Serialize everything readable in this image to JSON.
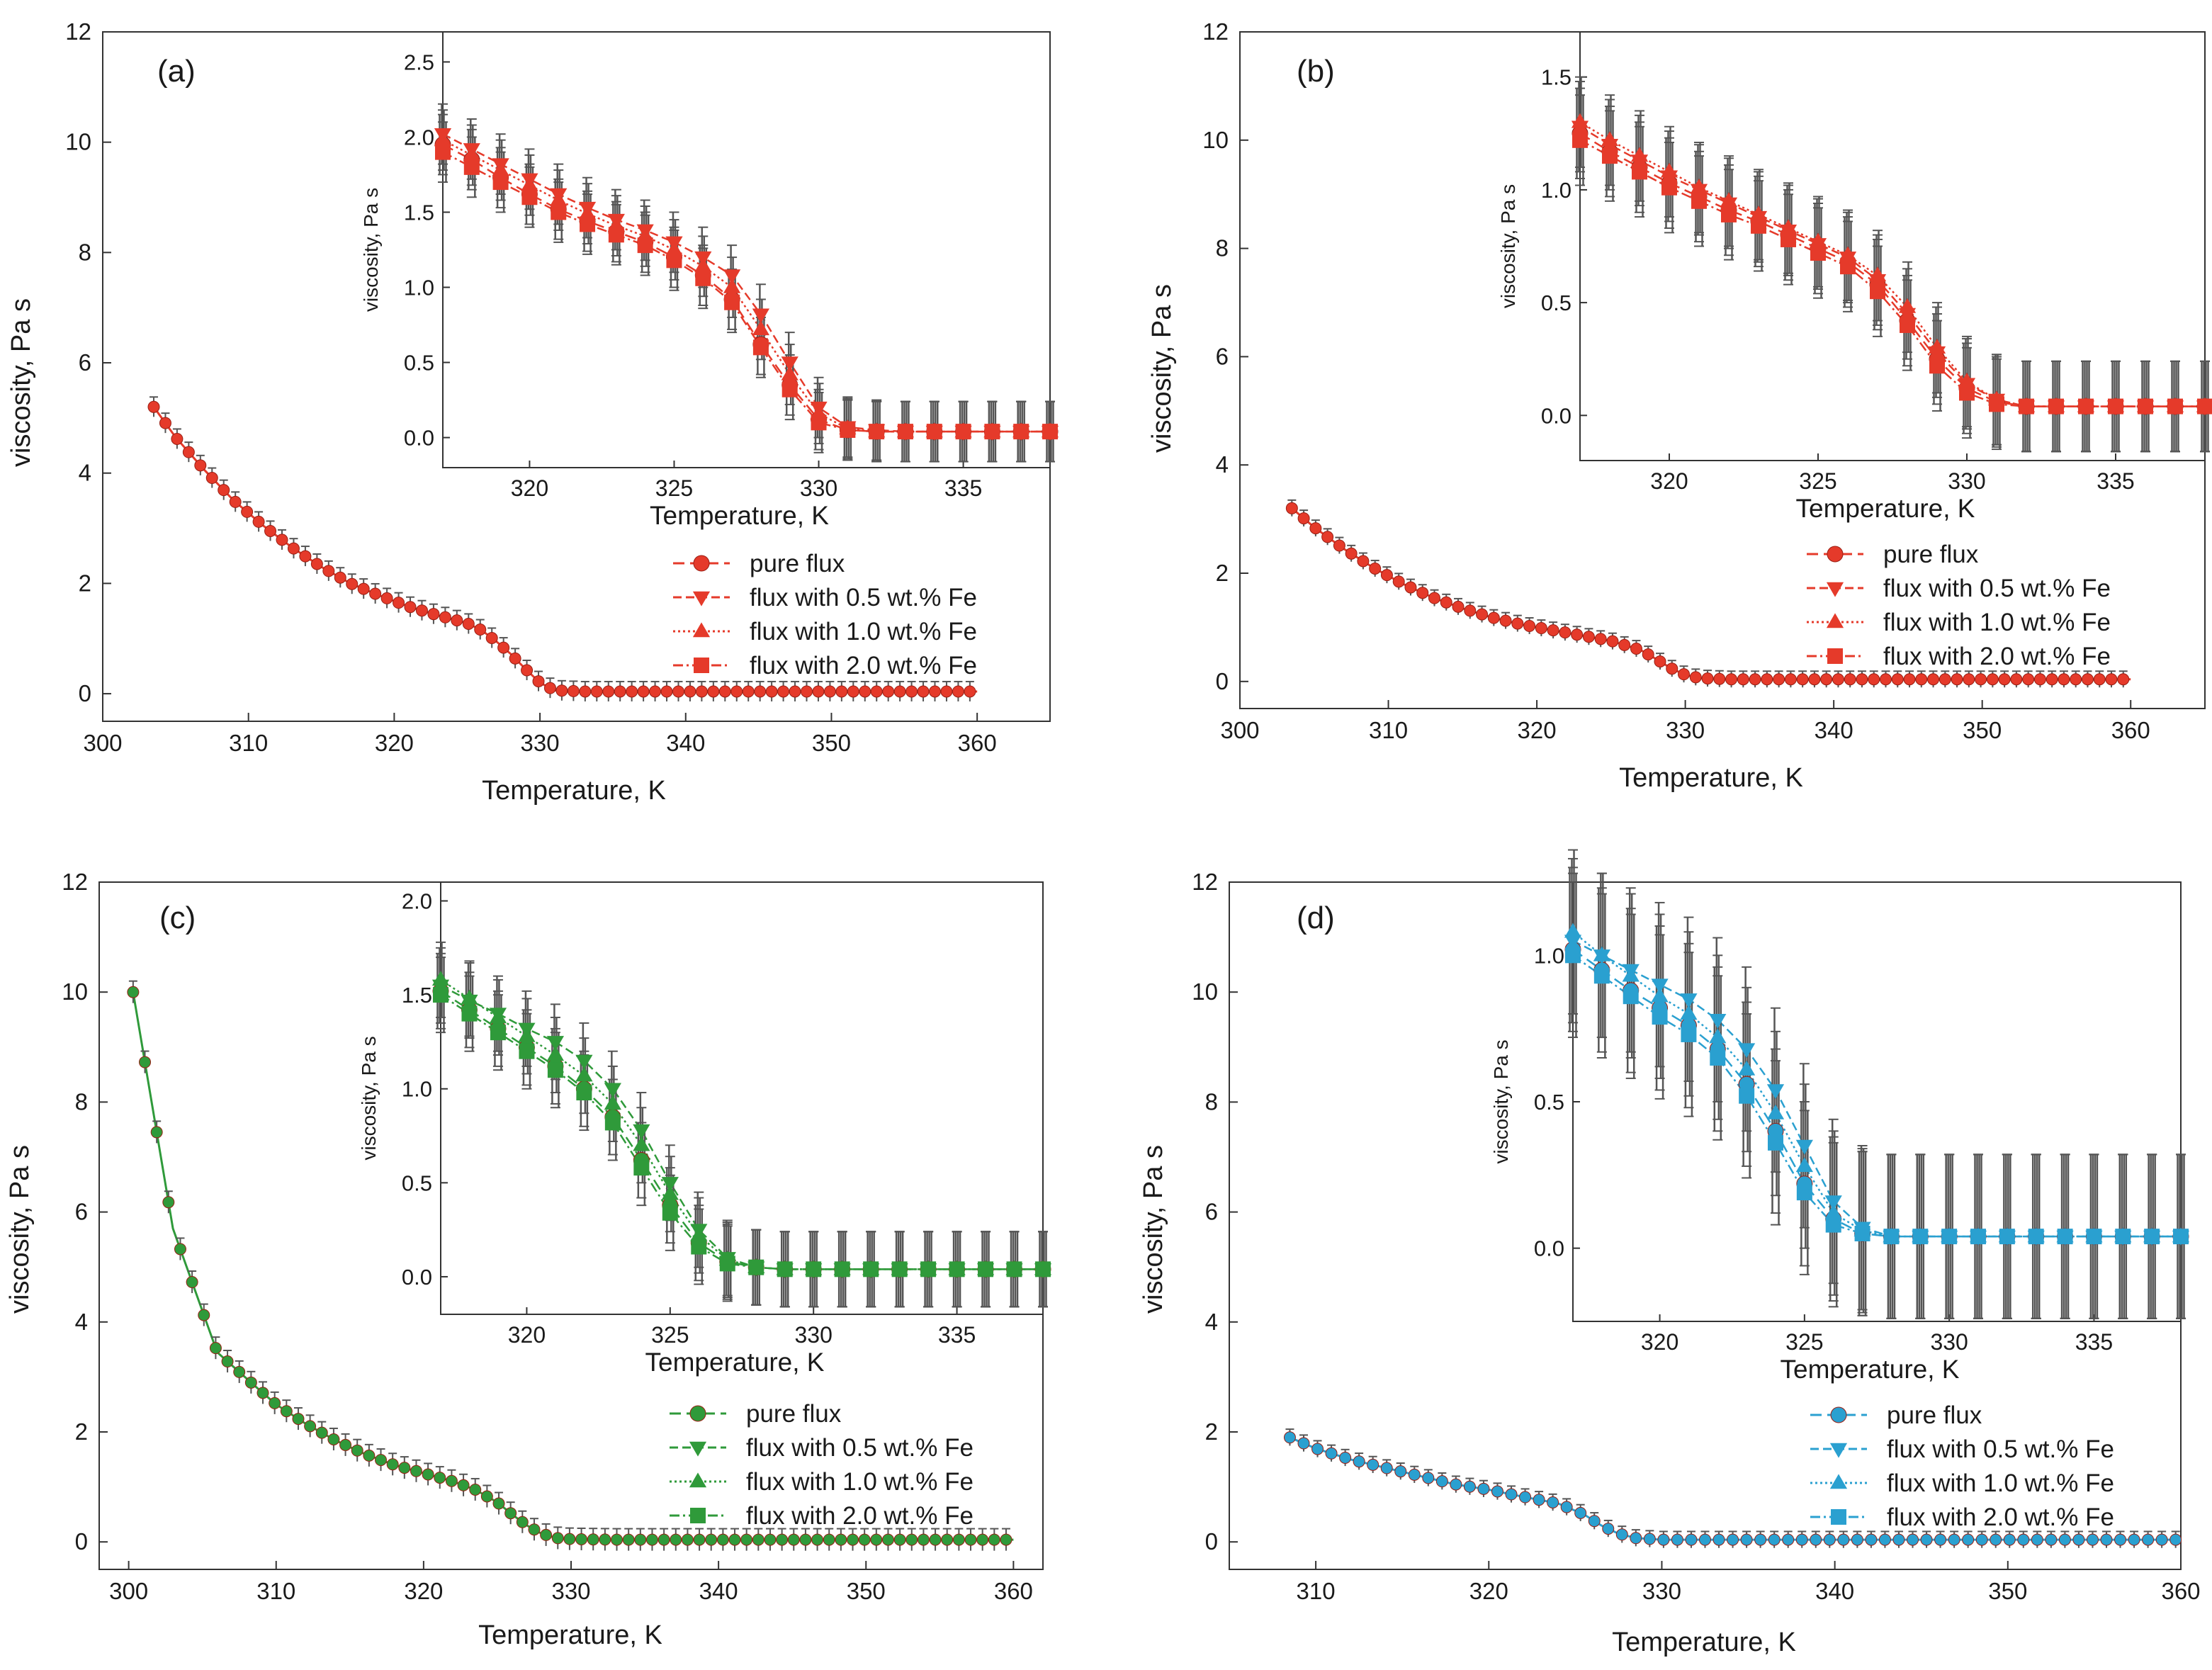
{
  "figure": {
    "series_labels": [
      "pure flux",
      "flux with 0.5 wt.% Fe",
      "flux with 1.0 wt.% Fe",
      "flux with 2.0 wt.% Fe"
    ]
  },
  "chart_data": [
    {
      "id": "a",
      "type": "line",
      "panel_label": "(a)",
      "color": "#e53a2a",
      "error_color": "#555555",
      "xlabel": "Temperature, K",
      "ylabel": "viscosity, Pa s",
      "xlim": [
        300,
        365
      ],
      "ylim": [
        -0.5,
        12
      ],
      "xticks": [
        300,
        310,
        320,
        330,
        340,
        350,
        360
      ],
      "yticks": [
        0,
        2,
        4,
        6,
        8,
        10,
        12
      ],
      "main_curve": {
        "x": [
          303.5,
          305,
          307,
          309,
          311,
          313,
          315,
          317,
          319,
          321,
          323,
          325,
          326,
          327,
          328,
          329,
          330,
          331,
          333,
          336,
          340,
          345,
          350,
          355,
          360
        ],
        "y": [
          5.2,
          4.65,
          4.05,
          3.5,
          3.05,
          2.65,
          2.3,
          2.0,
          1.78,
          1.58,
          1.42,
          1.28,
          1.15,
          0.95,
          0.72,
          0.45,
          0.2,
          0.06,
          0.04,
          0.04,
          0.04,
          0.04,
          0.04,
          0.04,
          0.04
        ],
        "err": 0.18
      },
      "inset": {
        "xlabel": "Temperature, K",
        "ylabel": "viscosity, Pa s",
        "xlim": [
          317,
          338
        ],
        "ylim": [
          -0.2,
          2.7
        ],
        "xticks": [
          320,
          325,
          330,
          335
        ],
        "yticks": [
          0.0,
          0.5,
          1.0,
          1.5,
          2.0,
          2.5
        ],
        "yticklabels": [
          "0.0",
          "0.5",
          "1.0",
          "1.5",
          "2.0",
          "2.5"
        ],
        "x": [
          317,
          318,
          319,
          320,
          321,
          322,
          323,
          324,
          325,
          326,
          327,
          328,
          329,
          330,
          331,
          332,
          333,
          334,
          335,
          336,
          337,
          338
        ],
        "series": [
          {
            "name": "pure flux",
            "marker": "circle",
            "values": [
              1.95,
              1.85,
              1.73,
              1.62,
              1.52,
              1.44,
              1.37,
              1.3,
              1.2,
              1.08,
              0.92,
              0.62,
              0.35,
              0.12,
              0.05,
              0.04,
              0.04,
              0.04,
              0.04,
              0.04,
              0.04,
              0.04
            ]
          },
          {
            "name": "flux with 0.5 wt.% Fe",
            "marker": "triangle-down",
            "values": [
              2.02,
              1.92,
              1.82,
              1.72,
              1.62,
              1.53,
              1.45,
              1.38,
              1.3,
              1.2,
              1.08,
              0.82,
              0.5,
              0.2,
              0.07,
              0.05,
              0.04,
              0.04,
              0.04,
              0.04,
              0.04,
              0.04
            ]
          },
          {
            "name": "flux with 1.0 wt.% Fe",
            "marker": "triangle-up",
            "values": [
              1.98,
              1.88,
              1.78,
              1.68,
              1.58,
              1.49,
              1.41,
              1.34,
              1.25,
              1.14,
              1.0,
              0.72,
              0.42,
              0.16,
              0.06,
              0.04,
              0.04,
              0.04,
              0.04,
              0.04,
              0.04,
              0.04
            ]
          },
          {
            "name": "flux with 2.0 wt.% Fe",
            "marker": "square",
            "values": [
              1.9,
              1.8,
              1.7,
              1.6,
              1.5,
              1.42,
              1.35,
              1.28,
              1.18,
              1.06,
              0.9,
              0.6,
              0.32,
              0.1,
              0.05,
              0.04,
              0.04,
              0.04,
              0.04,
              0.04,
              0.04,
              0.04
            ]
          }
        ],
        "err": 0.2
      },
      "legend": {
        "placement": "bottom-right"
      }
    },
    {
      "id": "b",
      "type": "line",
      "panel_label": "(b)",
      "color": "#e53a2a",
      "error_color": "#555555",
      "xlabel": "Temperature, K",
      "ylabel": "viscosity, Pa s",
      "xlim": [
        300,
        365
      ],
      "ylim": [
        -0.5,
        12
      ],
      "xticks": [
        300,
        310,
        320,
        330,
        340,
        350,
        360
      ],
      "yticks": [
        0,
        2,
        4,
        6,
        8,
        10,
        12
      ],
      "main_curve": {
        "x": [
          303.5,
          305,
          307,
          309,
          311,
          313,
          315,
          317,
          319,
          321,
          323,
          325,
          327,
          328,
          329,
          330,
          331,
          333,
          336,
          340,
          345,
          350,
          355,
          360
        ],
        "y": [
          3.2,
          2.85,
          2.45,
          2.1,
          1.8,
          1.55,
          1.35,
          1.18,
          1.05,
          0.95,
          0.85,
          0.75,
          0.58,
          0.42,
          0.25,
          0.12,
          0.06,
          0.04,
          0.04,
          0.04,
          0.04,
          0.04,
          0.04,
          0.04
        ],
        "err": 0.15
      },
      "inset": {
        "xlabel": "Temperature, K",
        "ylabel": "viscosity, Pa s",
        "xlim": [
          317,
          338
        ],
        "ylim": [
          -0.2,
          1.7
        ],
        "xticks": [
          320,
          325,
          330,
          335
        ],
        "yticks": [
          0.0,
          0.5,
          1.0,
          1.5
        ],
        "yticklabels": [
          "0.0",
          "0.5",
          "1.0",
          "1.5"
        ],
        "x": [
          317,
          318,
          319,
          320,
          321,
          322,
          323,
          324,
          325,
          326,
          327,
          328,
          329,
          330,
          331,
          332,
          333,
          334,
          335,
          336,
          337,
          338
        ],
        "series": [
          {
            "name": "pure flux",
            "marker": "circle",
            "values": [
              1.25,
              1.17,
              1.1,
              1.03,
              0.97,
              0.91,
              0.86,
              0.8,
              0.74,
              0.68,
              0.58,
              0.42,
              0.25,
              0.12,
              0.06,
              0.04,
              0.04,
              0.04,
              0.04,
              0.04,
              0.04,
              0.04
            ]
          },
          {
            "name": "flux with 0.5 wt.% Fe",
            "marker": "triangle-down",
            "values": [
              1.28,
              1.2,
              1.13,
              1.06,
              1.0,
              0.94,
              0.88,
              0.82,
              0.76,
              0.7,
              0.6,
              0.45,
              0.28,
              0.14,
              0.07,
              0.04,
              0.04,
              0.04,
              0.04,
              0.04,
              0.04,
              0.04
            ]
          },
          {
            "name": "flux with 1.0 wt.% Fe",
            "marker": "triangle-up",
            "values": [
              1.3,
              1.22,
              1.15,
              1.08,
              1.01,
              0.95,
              0.89,
              0.83,
              0.77,
              0.71,
              0.62,
              0.48,
              0.3,
              0.15,
              0.07,
              0.04,
              0.04,
              0.04,
              0.04,
              0.04,
              0.04,
              0.04
            ]
          },
          {
            "name": "flux with 2.0 wt.% Fe",
            "marker": "square",
            "values": [
              1.22,
              1.15,
              1.08,
              1.01,
              0.95,
              0.89,
              0.84,
              0.78,
              0.72,
              0.66,
              0.55,
              0.4,
              0.22,
              0.1,
              0.05,
              0.04,
              0.04,
              0.04,
              0.04,
              0.04,
              0.04,
              0.04
            ]
          }
        ],
        "err": 0.2
      },
      "legend": {
        "placement": "bottom-right"
      }
    },
    {
      "id": "c",
      "type": "line",
      "panel_label": "(c)",
      "color": "#2f9a3a",
      "error_color": "#555555",
      "xlabel": "Temperature, K",
      "ylabel": "viscosity, Pa s",
      "xlim": [
        298,
        362
      ],
      "ylim": [
        -0.5,
        12
      ],
      "xticks": [
        300,
        310,
        320,
        330,
        340,
        350,
        360
      ],
      "yticks": [
        0,
        2,
        4,
        6,
        8,
        10,
        12
      ],
      "main_curve": {
        "x": [
          300.3,
          303,
          306,
          308.5,
          310,
          312,
          314,
          316,
          318,
          320,
          322,
          323.5,
          325,
          326,
          327,
          328,
          329,
          330,
          333,
          336,
          340,
          345,
          350,
          355,
          360
        ],
        "y": [
          10.0,
          5.7,
          3.45,
          2.85,
          2.5,
          2.15,
          1.85,
          1.6,
          1.4,
          1.25,
          1.1,
          0.95,
          0.72,
          0.5,
          0.3,
          0.15,
          0.07,
          0.05,
          0.04,
          0.04,
          0.04,
          0.04,
          0.04,
          0.04,
          0.04
        ],
        "err": 0.2
      },
      "inset": {
        "xlabel": "Temperature, K",
        "ylabel": "viscosity, Pa s",
        "xlim": [
          317,
          338
        ],
        "ylim": [
          -0.2,
          2.1
        ],
        "xticks": [
          320,
          325,
          330,
          335
        ],
        "yticks": [
          0.0,
          0.5,
          1.0,
          1.5,
          2.0
        ],
        "yticklabels": [
          "0.0",
          "0.5",
          "1.0",
          "1.5",
          "2.0"
        ],
        "x": [
          317,
          318,
          319,
          320,
          321,
          322,
          323,
          324,
          325,
          326,
          327,
          328,
          329,
          330,
          331,
          332,
          333,
          334,
          335,
          336,
          337,
          338
        ],
        "series": [
          {
            "name": "pure flux",
            "marker": "circle",
            "values": [
              1.52,
              1.42,
              1.32,
              1.22,
              1.12,
              1.0,
              0.85,
              0.62,
              0.38,
              0.18,
              0.08,
              0.05,
              0.04,
              0.04,
              0.04,
              0.04,
              0.04,
              0.04,
              0.04,
              0.04,
              0.04,
              0.04
            ]
          },
          {
            "name": "flux with 0.5 wt.% Fe",
            "marker": "triangle-down",
            "values": [
              1.55,
              1.47,
              1.4,
              1.32,
              1.25,
              1.15,
              1.0,
              0.78,
              0.5,
              0.25,
              0.1,
              0.05,
              0.04,
              0.04,
              0.04,
              0.04,
              0.04,
              0.04,
              0.04,
              0.04,
              0.04,
              0.04
            ]
          },
          {
            "name": "flux with 1.0 wt.% Fe",
            "marker": "triangle-up",
            "values": [
              1.58,
              1.48,
              1.38,
              1.28,
              1.18,
              1.07,
              0.92,
              0.7,
              0.44,
              0.22,
              0.09,
              0.05,
              0.04,
              0.04,
              0.04,
              0.04,
              0.04,
              0.04,
              0.04,
              0.04,
              0.04,
              0.04
            ]
          },
          {
            "name": "flux with 2.0 wt.% Fe",
            "marker": "square",
            "values": [
              1.5,
              1.4,
              1.3,
              1.2,
              1.1,
              0.98,
              0.82,
              0.58,
              0.34,
              0.16,
              0.07,
              0.05,
              0.04,
              0.04,
              0.04,
              0.04,
              0.04,
              0.04,
              0.04,
              0.04,
              0.04,
              0.04
            ]
          }
        ],
        "err": 0.2
      },
      "legend": {
        "placement": "bottom-right"
      }
    },
    {
      "id": "d",
      "type": "line",
      "panel_label": "(d)",
      "color": "#2aa0d0",
      "error_color": "#555555",
      "xlabel": "Temperature, K",
      "ylabel": "viscosity, Pa s",
      "xlim": [
        305,
        360
      ],
      "ylim": [
        -0.5,
        12
      ],
      "xticks": [
        310,
        320,
        330,
        340,
        350,
        360
      ],
      "yticks": [
        0,
        2,
        4,
        6,
        8,
        10,
        12
      ],
      "main_curve": {
        "x": [
          308.5,
          310,
          312,
          314,
          316,
          318,
          320,
          322,
          324,
          325.5,
          326.5,
          327.5,
          328.5,
          330,
          333,
          336,
          340,
          345,
          350,
          355,
          360
        ],
        "y": [
          1.9,
          1.7,
          1.5,
          1.35,
          1.2,
          1.05,
          0.95,
          0.82,
          0.7,
          0.5,
          0.3,
          0.15,
          0.07,
          0.04,
          0.04,
          0.04,
          0.04,
          0.04,
          0.04,
          0.04,
          0.04
        ],
        "err": 0.15
      },
      "inset": {
        "xlabel": "Temperature, K",
        "ylabel": "viscosity, Pa s",
        "xlim": [
          317,
          338
        ],
        "ylim": [
          -0.25,
          1.25
        ],
        "xticks": [
          320,
          325,
          330,
          335
        ],
        "yticks": [
          0.0,
          0.5,
          1.0
        ],
        "yticklabels": [
          "0.0",
          "0.5",
          "1.0"
        ],
        "x": [
          317,
          318,
          319,
          320,
          321,
          322,
          323,
          324,
          325,
          326,
          327,
          328,
          329,
          330,
          331,
          332,
          333,
          334,
          335,
          336,
          337,
          338
        ],
        "series": [
          {
            "name": "pure flux",
            "marker": "circle",
            "values": [
              1.02,
              0.95,
              0.88,
              0.82,
              0.76,
              0.68,
              0.56,
              0.4,
              0.22,
              0.1,
              0.05,
              0.04,
              0.04,
              0.04,
              0.04,
              0.04,
              0.04,
              0.04,
              0.04,
              0.04,
              0.04,
              0.04
            ]
          },
          {
            "name": "flux with 0.5 wt.% Fe",
            "marker": "triangle-down",
            "values": [
              1.05,
              1.0,
              0.95,
              0.9,
              0.85,
              0.78,
              0.68,
              0.54,
              0.35,
              0.16,
              0.07,
              0.04,
              0.04,
              0.04,
              0.04,
              0.04,
              0.04,
              0.04,
              0.04,
              0.04,
              0.04,
              0.04
            ]
          },
          {
            "name": "flux with 1.0 wt.% Fe",
            "marker": "triangle-up",
            "values": [
              1.08,
              1.0,
              0.93,
              0.86,
              0.8,
              0.72,
              0.61,
              0.46,
              0.28,
              0.12,
              0.06,
              0.04,
              0.04,
              0.04,
              0.04,
              0.04,
              0.04,
              0.04,
              0.04,
              0.04,
              0.04,
              0.04
            ]
          },
          {
            "name": "flux with 2.0 wt.% Fe",
            "marker": "square",
            "values": [
              1.0,
              0.93,
              0.86,
              0.79,
              0.73,
              0.65,
              0.52,
              0.36,
              0.19,
              0.08,
              0.05,
              0.04,
              0.04,
              0.04,
              0.04,
              0.04,
              0.04,
              0.04,
              0.04,
              0.04,
              0.04,
              0.04
            ]
          }
        ],
        "err": 0.28
      },
      "legend": {
        "placement": "bottom-right"
      }
    }
  ]
}
